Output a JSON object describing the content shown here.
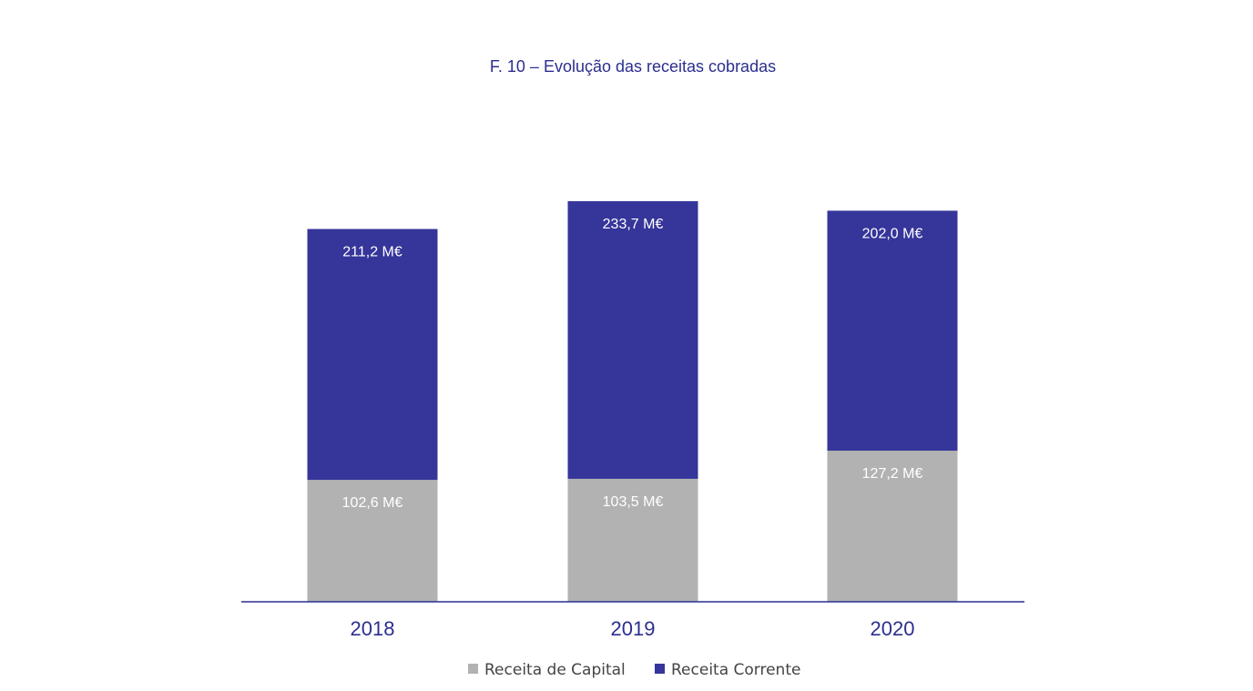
{
  "chart_data": {
    "type": "bar",
    "stacked": true,
    "title": "F. 10 – Evolução das receitas cobradas",
    "categories": [
      "2018",
      "2019",
      "2020"
    ],
    "series": [
      {
        "name": "Receita de Capital",
        "color": "#b2b2b2",
        "values": [
          102.6,
          103.5,
          127.2
        ],
        "labels": [
          "102,6 M€",
          "103,5 M€",
          "127,2 M€"
        ]
      },
      {
        "name": "Receita Corrente",
        "color": "#35359a",
        "values": [
          211.2,
          233.7,
          202.0
        ],
        "labels": [
          "211,2 M€",
          "233,7 M€",
          "202,0 M€"
        ]
      }
    ],
    "xlabel": "",
    "ylabel": "",
    "ylim": [
      0,
      337.2
    ],
    "grid": false,
    "legend": "bottom",
    "axis_color": "#2b2f8f"
  }
}
